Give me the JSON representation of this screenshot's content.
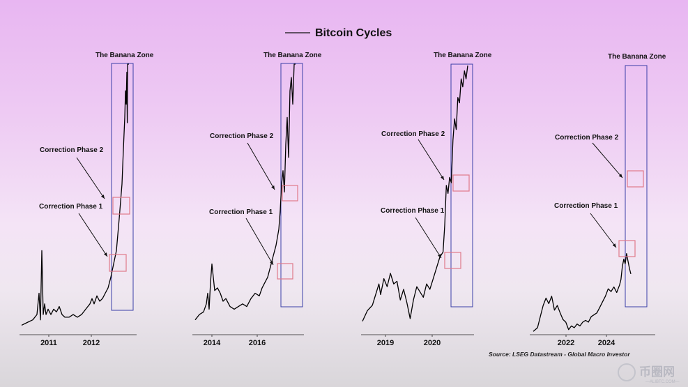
{
  "chart_data": {
    "type": "line",
    "title": "Bitcoin Cycles",
    "legend": {
      "position": "top-center",
      "entries": [
        "Bitcoin Cycles"
      ]
    },
    "source": "Source: LSEG Datastream - Global Macro Investor",
    "grid": false,
    "y_scale": "log (unlabeled)",
    "panels": [
      {
        "name": "cycle-1",
        "x_ticks": [
          "2011",
          "2012"
        ],
        "zone_label": "The Banana Zone",
        "phase_labels": [
          "Correction Phase 1",
          "Correction Phase 2"
        ],
        "points": [
          [
            0,
            2
          ],
          [
            4,
            3
          ],
          [
            8,
            4
          ],
          [
            11,
            6
          ],
          [
            12.5,
            14
          ],
          [
            13.5,
            4
          ],
          [
            14.5,
            30
          ],
          [
            15.5,
            6
          ],
          [
            16.5,
            10
          ],
          [
            17.5,
            6
          ],
          [
            19,
            8
          ],
          [
            21,
            6
          ],
          [
            23,
            8
          ],
          [
            25,
            7
          ],
          [
            27,
            9
          ],
          [
            29,
            6
          ],
          [
            31,
            5
          ],
          [
            34,
            5
          ],
          [
            37,
            6
          ],
          [
            40,
            5
          ],
          [
            43,
            6
          ],
          [
            46,
            8
          ],
          [
            49,
            10
          ],
          [
            50.5,
            12
          ],
          [
            52,
            10
          ],
          [
            54,
            13
          ],
          [
            56,
            11
          ],
          [
            58,
            12
          ],
          [
            60,
            14
          ],
          [
            62,
            16
          ],
          [
            64,
            20
          ],
          [
            66,
            25
          ],
          [
            68,
            30
          ],
          [
            70,
            42
          ],
          [
            72,
            55
          ],
          [
            73,
            68
          ],
          [
            74,
            80
          ],
          [
            74.5,
            90
          ],
          [
            75,
            85
          ],
          [
            75.5,
            97
          ],
          [
            75.8,
            78
          ],
          [
            76,
            100
          ],
          [
            77,
            100
          ]
        ]
      },
      {
        "name": "cycle-2",
        "x_ticks": [
          "2014",
          "2016"
        ],
        "zone_label": "The Banana Zone",
        "phase_labels": [
          "Correction Phase 1",
          "Correction Phase 2"
        ],
        "points": [
          [
            0,
            4
          ],
          [
            3,
            6
          ],
          [
            6,
            7
          ],
          [
            8,
            10
          ],
          [
            9,
            14
          ],
          [
            10,
            8
          ],
          [
            11,
            18
          ],
          [
            12,
            25
          ],
          [
            13,
            20
          ],
          [
            14,
            15
          ],
          [
            16,
            16
          ],
          [
            18,
            14
          ],
          [
            20,
            11
          ],
          [
            22,
            12
          ],
          [
            25,
            9
          ],
          [
            28,
            8
          ],
          [
            31,
            9
          ],
          [
            34,
            10
          ],
          [
            37,
            9
          ],
          [
            40,
            12
          ],
          [
            43,
            14
          ],
          [
            46,
            13
          ],
          [
            48,
            16
          ],
          [
            50,
            18
          ],
          [
            52,
            20
          ],
          [
            54,
            24
          ],
          [
            56,
            28
          ],
          [
            58,
            32
          ],
          [
            60,
            38
          ],
          [
            61,
            45
          ],
          [
            62,
            55
          ],
          [
            63,
            60
          ],
          [
            64,
            52
          ],
          [
            65,
            70
          ],
          [
            66,
            80
          ],
          [
            67,
            65
          ],
          [
            68,
            90
          ],
          [
            69,
            95
          ],
          [
            70,
            85
          ],
          [
            71,
            100
          ],
          [
            72,
            100
          ]
        ]
      },
      {
        "name": "cycle-3",
        "x_ticks": [
          "2019",
          "2020"
        ],
        "zone_label": "The Banana Zone",
        "phase_labels": [
          "Correction Phase 1",
          "Correction Phase 2"
        ],
        "points": [
          [
            0,
            4
          ],
          [
            3,
            8
          ],
          [
            6,
            10
          ],
          [
            8,
            14
          ],
          [
            10,
            18
          ],
          [
            11,
            14
          ],
          [
            13,
            20
          ],
          [
            15,
            17
          ],
          [
            17,
            22
          ],
          [
            19,
            18
          ],
          [
            21,
            19
          ],
          [
            23,
            12
          ],
          [
            25,
            16
          ],
          [
            27,
            11
          ],
          [
            29,
            5
          ],
          [
            31,
            12
          ],
          [
            33,
            17
          ],
          [
            35,
            15
          ],
          [
            37,
            13
          ],
          [
            39,
            18
          ],
          [
            41,
            16
          ],
          [
            43,
            20
          ],
          [
            45,
            24
          ],
          [
            47,
            28
          ],
          [
            49,
            30
          ],
          [
            50,
            40
          ],
          [
            51,
            55
          ],
          [
            52,
            52
          ],
          [
            53,
            58
          ],
          [
            54,
            56
          ],
          [
            55,
            72
          ],
          [
            56,
            80
          ],
          [
            57,
            76
          ],
          [
            58,
            88
          ],
          [
            59,
            86
          ],
          [
            60,
            95
          ],
          [
            61,
            92
          ],
          [
            62,
            98
          ],
          [
            63,
            95
          ],
          [
            64,
            100
          ]
        ]
      },
      {
        "name": "cycle-4",
        "x_ticks": [
          "2022",
          "2024"
        ],
        "zone_label": "The Banana Zone",
        "phase_labels": [
          "Correction Phase 1",
          "Correction Phase 2"
        ],
        "points": [
          [
            0,
            2
          ],
          [
            3,
            6
          ],
          [
            5,
            18
          ],
          [
            7,
            30
          ],
          [
            9,
            38
          ],
          [
            11,
            32
          ],
          [
            13,
            40
          ],
          [
            15,
            25
          ],
          [
            17,
            30
          ],
          [
            19,
            22
          ],
          [
            21,
            15
          ],
          [
            23,
            12
          ],
          [
            25,
            4
          ],
          [
            27,
            8
          ],
          [
            29,
            6
          ],
          [
            31,
            10
          ],
          [
            33,
            8
          ],
          [
            35,
            12
          ],
          [
            37,
            14
          ],
          [
            39,
            12
          ],
          [
            41,
            18
          ],
          [
            43,
            20
          ],
          [
            45,
            22
          ],
          [
            47,
            28
          ],
          [
            49,
            34
          ],
          [
            51,
            40
          ],
          [
            53,
            48
          ],
          [
            55,
            45
          ],
          [
            57,
            50
          ],
          [
            59,
            44
          ],
          [
            61,
            52
          ],
          [
            62,
            58
          ],
          [
            63,
            72
          ],
          [
            64,
            80
          ],
          [
            65,
            75
          ],
          [
            66,
            86
          ],
          [
            67,
            78
          ],
          [
            68,
            70
          ],
          [
            69,
            64
          ]
        ]
      }
    ]
  },
  "watermark": {
    "text": "币圈网",
    "sub": "—ALIBTC.COM—"
  }
}
